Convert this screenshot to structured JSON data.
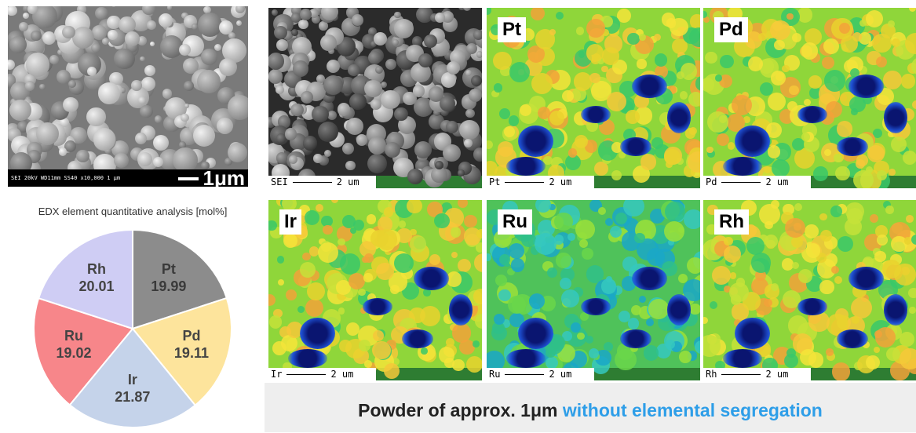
{
  "sem_main": {
    "info_text": "SEI  20kV   WD11mm  SS40            x10,000   1 μm",
    "scale_label": "1μm"
  },
  "maps": [
    {
      "element": "SEI",
      "label": "",
      "scale_prefix": "SEI",
      "scale_value": "2 um"
    },
    {
      "element": "Pt",
      "label": "Pt",
      "scale_prefix": "Pt",
      "scale_value": "2 um"
    },
    {
      "element": "Pd",
      "label": "Pd",
      "scale_prefix": "Pd",
      "scale_value": "2 um"
    },
    {
      "element": "Ir",
      "label": "Ir",
      "scale_prefix": "Ir",
      "scale_value": "2 um"
    },
    {
      "element": "Ru",
      "label": "Ru",
      "scale_prefix": "Ru",
      "scale_value": "2 um"
    },
    {
      "element": "Rh",
      "label": "Rh",
      "scale_prefix": "Rh",
      "scale_value": "2 um"
    }
  ],
  "edx": {
    "title": "EDX element quantitative analysis [mol%]"
  },
  "chart_data": {
    "type": "pie",
    "title": "EDX element quantitative analysis [mol%]",
    "slices": [
      {
        "label": "Pt",
        "value": 19.99,
        "value_text": "19.99",
        "color": "#8c8c8c"
      },
      {
        "label": "Pd",
        "value": 19.11,
        "value_text": "19.11",
        "color": "#fde49c"
      },
      {
        "label": "Ir",
        "value": 21.87,
        "value_text": "21.87",
        "color": "#c5d3ea"
      },
      {
        "label": "Ru",
        "value": 19.02,
        "value_text": "19.02",
        "color": "#f7868a"
      },
      {
        "label": "Rh",
        "value": 20.01,
        "value_text": "20.01",
        "color": "#cfcdf4"
      }
    ]
  },
  "caption": {
    "main": "Powder of approx. 1μm ",
    "accent": "without elemental segregation"
  },
  "colors": {
    "accent": "#2e9ee8",
    "map_green": "#2e7d32"
  }
}
